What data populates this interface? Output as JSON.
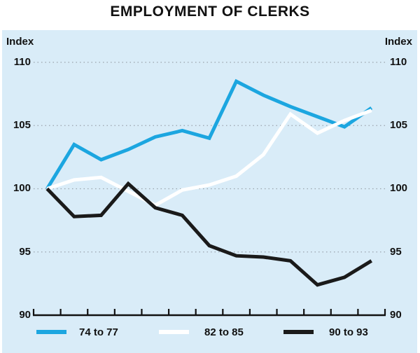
{
  "title": "EMPLOYMENT OF CLERKS",
  "axis": {
    "label_left": "Index",
    "label_right": "Index",
    "ticks": [
      "110",
      "105",
      "100",
      "95",
      "90"
    ]
  },
  "legend": [
    {
      "label": "74 to 77",
      "color": "#1ca6e0"
    },
    {
      "label": "82 to 85",
      "color": "#ffffff"
    },
    {
      "label": "90 to 93",
      "color": "#1a1a1a"
    }
  ],
  "colors": {
    "panel_background": "#d9ecf8",
    "gridline": "#9aa3ac",
    "axis": "#111111",
    "series_74_77": "#1ca6e0",
    "series_82_85": "#ffffff",
    "series_90_93": "#1a1a1a"
  },
  "chart_data": {
    "type": "line",
    "title": "EMPLOYMENT OF CLERKS",
    "ylabel": "Index",
    "ylabel_right": "Index",
    "ylim": [
      90,
      112.5
    ],
    "yticks": [
      90,
      95,
      100,
      105,
      110
    ],
    "grid": "horizontal dashed at each ytick, on",
    "legend_position": "bottom",
    "x_axis": "13 quarterly points between 14 unlabeled ticks, index = 100 at start",
    "x": [
      1,
      2,
      3,
      4,
      5,
      6,
      7,
      8,
      9,
      10,
      11,
      12,
      13
    ],
    "series": [
      {
        "name": "74 to 77",
        "color": "#1ca6e0",
        "values": [
          100,
          103.5,
          102.3,
          103.1,
          104.1,
          104.6,
          104.0,
          108.5,
          107.4,
          106.5,
          105.7,
          104.9,
          106.4
        ]
      },
      {
        "name": "82 to 85",
        "color": "#ffffff",
        "values": [
          100,
          100.7,
          100.9,
          99.8,
          98.7,
          99.9,
          100.3,
          101.0,
          102.7,
          105.9,
          104.4,
          105.4,
          106.2
        ]
      },
      {
        "name": "90 to 93",
        "color": "#1a1a1a",
        "values": [
          100,
          97.8,
          97.9,
          100.4,
          98.5,
          97.9,
          95.5,
          94.7,
          94.6,
          94.3,
          92.4,
          93.0,
          94.3
        ]
      }
    ]
  }
}
